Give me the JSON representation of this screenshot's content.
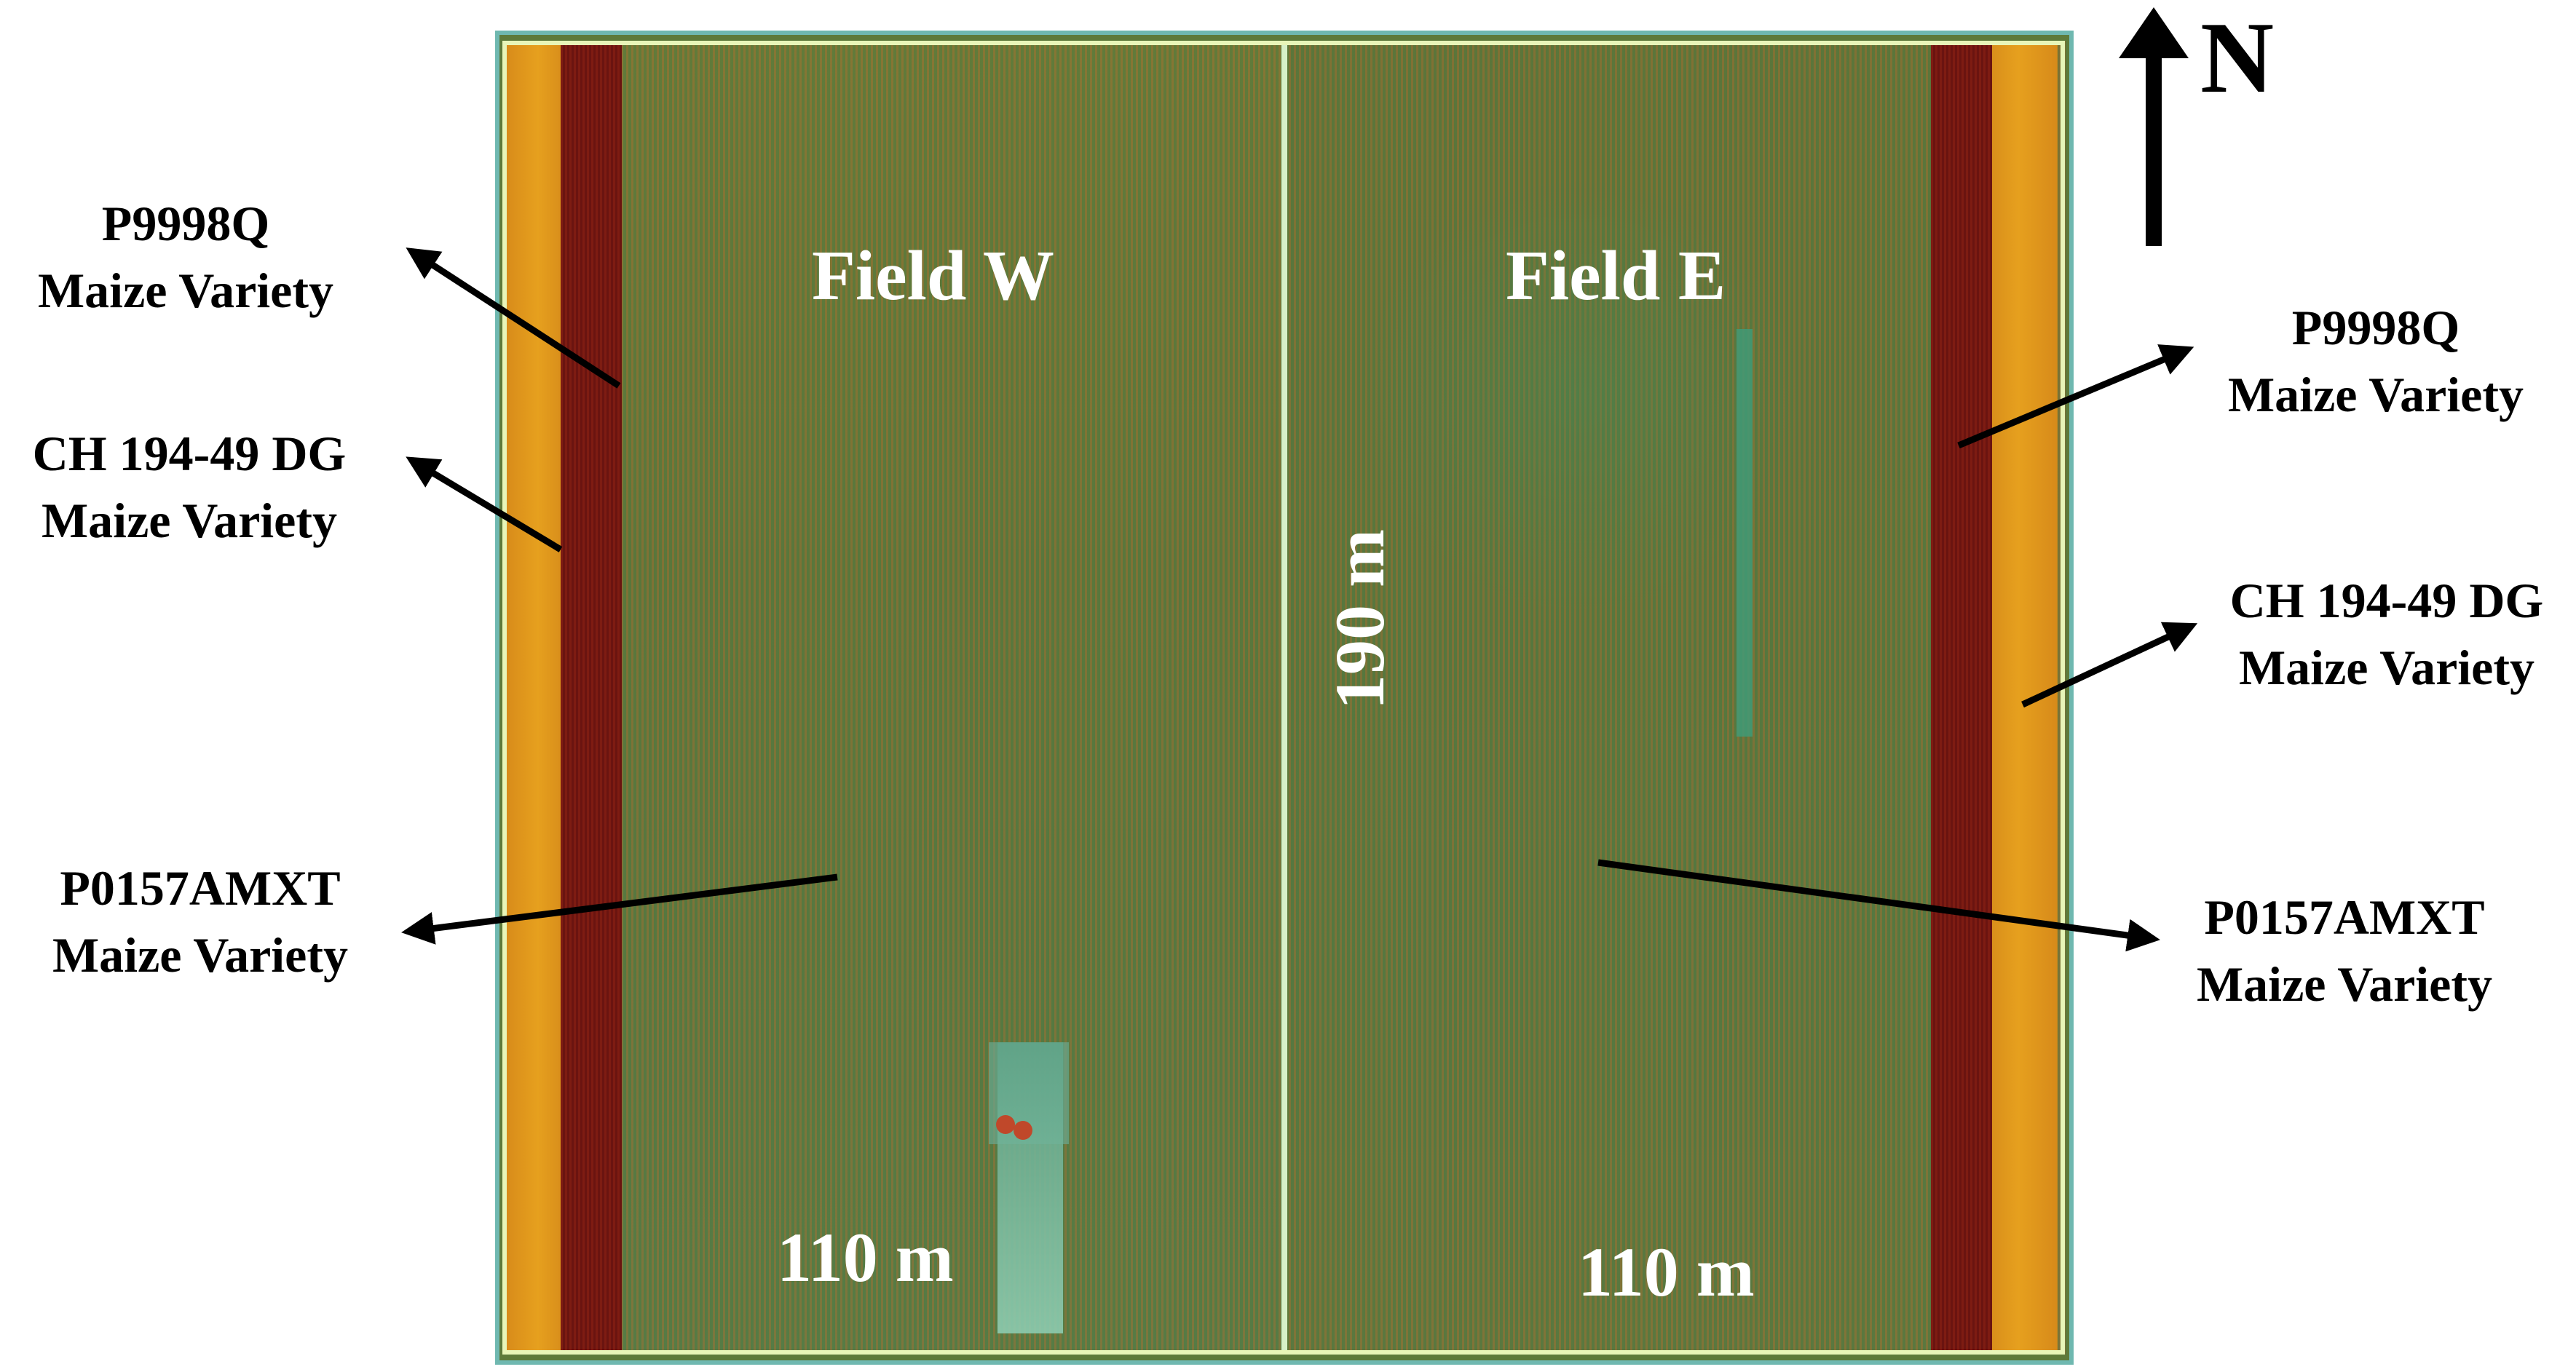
{
  "map": {
    "fields": [
      {
        "name": "Field W",
        "width": "110 m"
      },
      {
        "name": "Field E",
        "width": "110 m"
      }
    ],
    "height": "190 m",
    "north": "N"
  },
  "varieties": {
    "left": [
      {
        "name": "P9998Q",
        "type": "Maize Variety"
      },
      {
        "name": "CH 194-49 DG",
        "type": "Maize Variety"
      },
      {
        "name": "P0157AMXT",
        "type": "Maize Variety"
      }
    ],
    "right": [
      {
        "name": "P9998Q",
        "type": "Maize Variety"
      },
      {
        "name": "CH 194-49 DG",
        "type": "Maize Variety"
      },
      {
        "name": "P0157AMXT",
        "type": "Maize Variety"
      }
    ]
  },
  "colors": {
    "strip_orange": "#e6a01e",
    "strip_red": "#7e1c12",
    "field_green": "#637a3c",
    "frame": "#e8f5b8"
  }
}
